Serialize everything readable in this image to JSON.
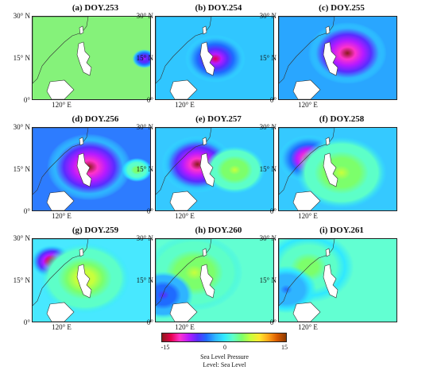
{
  "chart_data": {
    "type": "heatmap",
    "x_ticks": [
      "120° E"
    ],
    "y_ticks": [
      "30° N",
      "15° N",
      "0°"
    ],
    "colorbar": {
      "min": -15,
      "max": 15,
      "ticks": [
        "-15",
        "0",
        "15"
      ],
      "label_line1": "Sea Level Pressure",
      "label_line2": "Level: Sea Level",
      "colors": [
        "#8b1a1a",
        "#e6004d",
        "#ff33cc",
        "#b81aff",
        "#5a2cff",
        "#1f6bff",
        "#2fb4ff",
        "#30e8ff",
        "#5dffc8",
        "#7cff6b",
        "#c8ff3c",
        "#ffe830",
        "#ffa51a",
        "#d95a00",
        "#8b3a00"
      ]
    },
    "panels": [
      {
        "title": "(a) DOY.253",
        "background": "#85f27a",
        "features": [
          {
            "x": 175,
            "y": 15,
            "r": 8,
            "value": -9
          }
        ]
      },
      {
        "title": "(b) DOY.254",
        "background": "#30c6ff",
        "features": [
          {
            "x": 140,
            "y": 15,
            "r": 20,
            "value": -12
          }
        ]
      },
      {
        "title": "(c) DOY.255",
        "background": "#29a6ff",
        "features": [
          {
            "x": 146,
            "y": 17,
            "r": 26,
            "value": -14
          }
        ]
      },
      {
        "title": "(d) DOY.256",
        "background": "#2d7cff",
        "features": [
          {
            "x": 138,
            "y": 16,
            "r": 28,
            "value": -14
          },
          {
            "x": 170,
            "y": 15,
            "r": 10,
            "value": 5
          }
        ]
      },
      {
        "title": "(e) DOY.257",
        "background": "#35c9ff",
        "features": [
          {
            "x": 128,
            "y": 17,
            "r": 24,
            "value": -14
          },
          {
            "x": 153,
            "y": 15,
            "r": 20,
            "value": 6
          }
        ]
      },
      {
        "title": "(f) DOY.258",
        "background": "#35c9ff",
        "features": [
          {
            "x": 120,
            "y": 19,
            "r": 20,
            "value": -13
          },
          {
            "x": 142,
            "y": 14,
            "r": 30,
            "value": 6
          }
        ]
      },
      {
        "title": "(g) DOY.259",
        "background": "#48e8ff",
        "features": [
          {
            "x": 113,
            "y": 22,
            "r": 14,
            "value": -15
          },
          {
            "x": 135,
            "y": 16,
            "r": 30,
            "value": 7
          }
        ]
      },
      {
        "title": "(h) DOY.260",
        "background": "#62ffd2",
        "features": [
          {
            "x": 126,
            "y": 18,
            "r": 32,
            "value": 6
          },
          {
            "x": 105,
            "y": 10,
            "r": 20,
            "value": -6
          }
        ]
      },
      {
        "title": "(i) DOY.261",
        "background": "#62ffd2",
        "features": [
          {
            "x": 120,
            "y": 20,
            "r": 30,
            "value": 5
          },
          {
            "x": 105,
            "y": 12,
            "r": 20,
            "value": -4
          }
        ]
      }
    ]
  }
}
